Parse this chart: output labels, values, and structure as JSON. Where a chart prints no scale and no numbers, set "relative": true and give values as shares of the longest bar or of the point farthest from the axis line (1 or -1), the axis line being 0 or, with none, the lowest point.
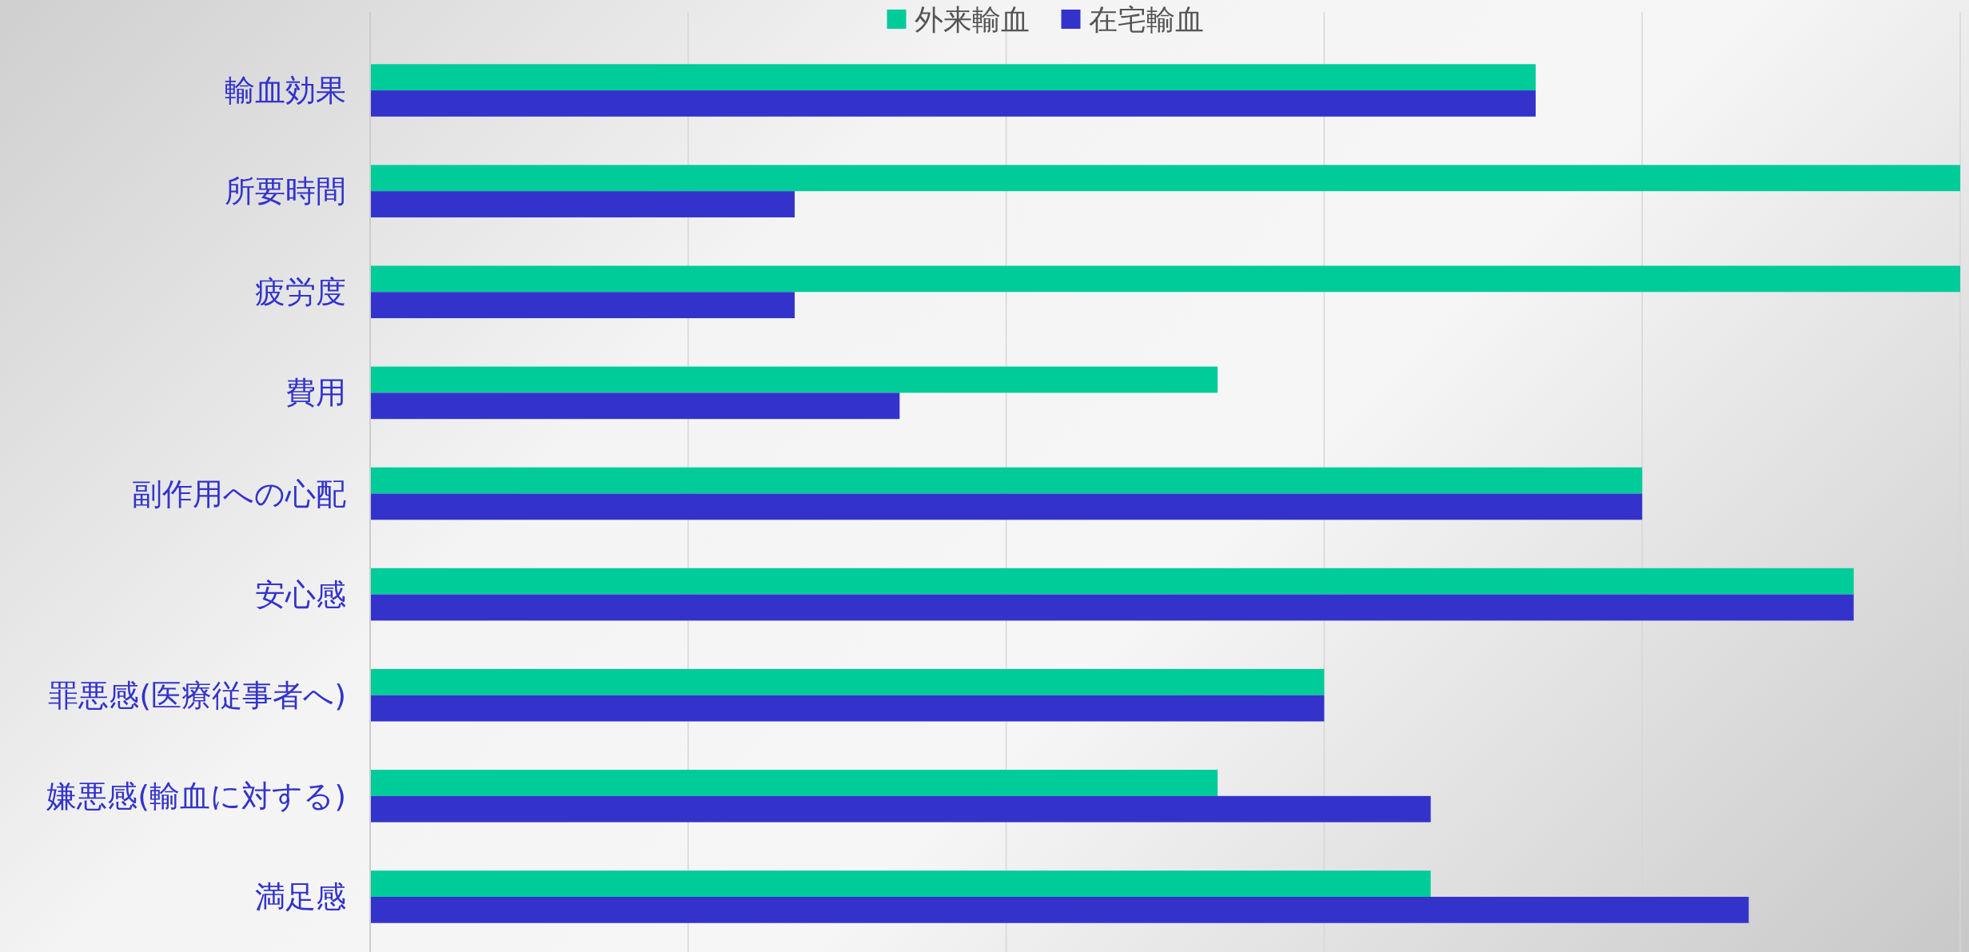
{
  "chart_data": {
    "type": "bar",
    "orientation": "horizontal",
    "relative": true,
    "grid": "x",
    "legend": "top",
    "categories": [
      "輸血効果",
      "所要時間",
      "疲労度",
      "費用",
      "副作用への心配",
      "安心感",
      "罪悪感(医療従事者へ)",
      "嫌悪感(輸血に対する)",
      "満足感"
    ],
    "series": [
      {
        "name": "外来輸血",
        "color": "#00cc99",
        "values": [
          0.733,
          1,
          1,
          0.533,
          0.8,
          0.933,
          0.6,
          0.533,
          0.667
        ]
      },
      {
        "name": "在宅輸血",
        "color": "#3333cc",
        "values": [
          0.733,
          0.267,
          0.267,
          0.333,
          0.8,
          0.933,
          0.6,
          0.667,
          0.867
        ]
      }
    ]
  }
}
